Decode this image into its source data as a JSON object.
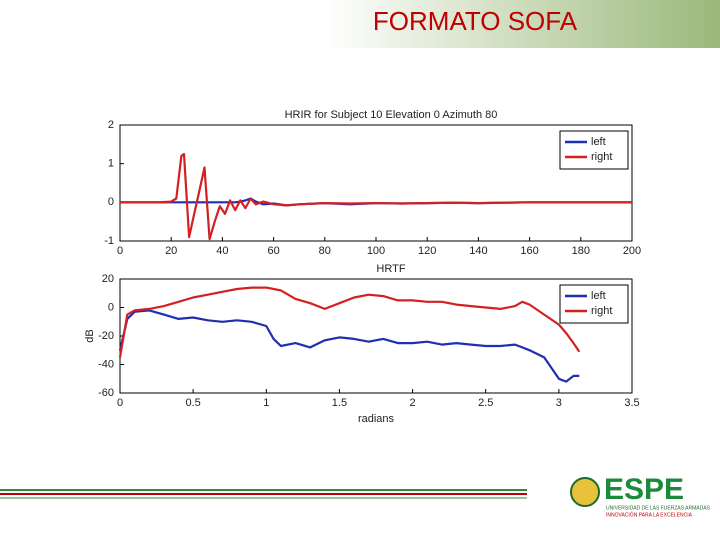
{
  "slide": {
    "title": "FORMATO SOFA",
    "logo": "ESPE",
    "logo_line1": "UNIVERSIDAD DE LAS FUERZAS ARMADAS",
    "logo_line2": "INNOVACIÓN PARA LA EXCELENCIA"
  },
  "chart_data": [
    {
      "type": "line",
      "title": "HRIR for Subject 10 Elevation 0 Azimuth 80",
      "x": [
        0,
        5,
        10,
        15,
        20,
        22,
        24,
        25,
        27,
        29,
        31,
        33,
        35,
        37,
        39,
        41,
        43,
        45,
        47,
        49,
        51,
        53,
        56,
        60,
        65,
        70,
        80,
        90,
        100,
        110,
        120,
        130,
        140,
        150,
        160,
        170,
        180,
        190,
        200
      ],
      "series": [
        {
          "name": "left",
          "color": "#1f2fb0",
          "values": [
            0,
            0,
            0,
            0,
            0,
            0,
            0,
            0,
            0,
            0,
            0,
            0,
            0,
            0,
            0,
            0,
            0,
            0,
            0.02,
            0.05,
            0.1,
            0.02,
            -0.05,
            -0.03,
            -0.08,
            -0.05,
            -0.02,
            -0.05,
            -0.02,
            -0.03,
            -0.02,
            -0.01,
            -0.02,
            -0.01,
            0,
            0,
            0,
            0,
            0
          ]
        },
        {
          "name": "right",
          "color": "#d42020",
          "values": [
            0,
            0,
            0,
            0,
            0.02,
            0.1,
            1.2,
            1.25,
            -0.9,
            -0.3,
            0.3,
            0.9,
            -0.95,
            -0.5,
            -0.1,
            -0.3,
            0.05,
            -0.2,
            0.05,
            -0.15,
            0.1,
            -0.05,
            0.02,
            -0.05,
            -0.08,
            -0.05,
            -0.02,
            -0.03,
            -0.02,
            -0.03,
            -0.02,
            -0.01,
            -0.02,
            -0.01,
            0,
            0,
            0,
            0,
            0
          ]
        }
      ],
      "xlim": [
        0,
        200
      ],
      "xticks": [
        0,
        20,
        40,
        60,
        80,
        100,
        120,
        140,
        160,
        180,
        200
      ],
      "ylim": [
        -1,
        2
      ],
      "yticks": [
        -1,
        0,
        1,
        2
      ],
      "grid": false,
      "legend": "upper right"
    },
    {
      "type": "line",
      "title": "HRTF",
      "xlabel": "radians",
      "ylabel": "dB",
      "x": [
        0,
        0.05,
        0.1,
        0.2,
        0.3,
        0.4,
        0.5,
        0.6,
        0.7,
        0.8,
        0.9,
        1.0,
        1.05,
        1.1,
        1.2,
        1.3,
        1.4,
        1.5,
        1.6,
        1.7,
        1.8,
        1.9,
        2.0,
        2.1,
        2.2,
        2.3,
        2.4,
        2.5,
        2.6,
        2.7,
        2.75,
        2.8,
        2.9,
        3.0,
        3.05,
        3.1,
        3.14
      ],
      "series": [
        {
          "name": "left",
          "color": "#1f2fb0",
          "values": [
            -30,
            -8,
            -3,
            -2,
            -5,
            -8,
            -7,
            -9,
            -10,
            -9,
            -10,
            -13,
            -22,
            -27,
            -25,
            -28,
            -23,
            -21,
            -22,
            -24,
            -22,
            -25,
            -25,
            -24,
            -26,
            -25,
            -26,
            -27,
            -27,
            -26,
            -28,
            -30,
            -35,
            -50,
            -52,
            -48,
            -48
          ]
        },
        {
          "name": "right",
          "color": "#d42020",
          "values": [
            -35,
            -5,
            -2,
            -1,
            1,
            4,
            7,
            9,
            11,
            13,
            14,
            14,
            13,
            12,
            6,
            3,
            -1,
            3,
            7,
            9,
            8,
            5,
            5,
            4,
            4,
            2,
            1,
            0,
            -1,
            1,
            4,
            2,
            -5,
            -12,
            -18,
            -25,
            -31
          ]
        }
      ],
      "xlim": [
        0,
        3.5
      ],
      "xticks": [
        0,
        0.5,
        1,
        1.5,
        2,
        2.5,
        3,
        3.5
      ],
      "ylim": [
        -60,
        20
      ],
      "yticks": [
        -60,
        -40,
        -20,
        0,
        20
      ],
      "grid": false,
      "legend": "upper right"
    }
  ]
}
